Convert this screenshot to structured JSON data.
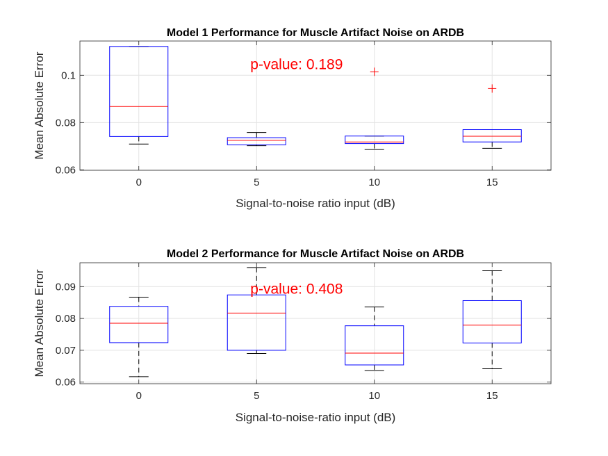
{
  "chart_data": [
    {
      "type": "box",
      "title": "Model 1 Performance for Muscle Artifact Noise on ARDB",
      "xlabel": "Signal-to-noise ratio input (dB)",
      "ylabel": "Mean Absolute Error",
      "categories": [
        "0",
        "5",
        "10",
        "15"
      ],
      "ylim": [
        0.0598,
        0.1145
      ],
      "yticks": [
        0.06,
        0.08,
        0.1
      ],
      "ytick_labels": [
        "0.06",
        "0.08",
        "0.1"
      ],
      "grid": true,
      "annotation": "p-value: 0.189",
      "annotation_position": {
        "category": 1.4,
        "value": 0.1047
      },
      "box_color": "#0000ff",
      "median_color": "#ff0000",
      "outlier_color": "#ff0000",
      "whisker_color": "#000000",
      "boxes": [
        {
          "category": "0",
          "whisker_low": 0.0709,
          "q1": 0.0741,
          "median": 0.0868,
          "q3": 0.1122,
          "whisker_high": 0.1122,
          "outliers": []
        },
        {
          "category": "5",
          "whisker_low": 0.0702,
          "q1": 0.0706,
          "median": 0.0725,
          "q3": 0.0736,
          "whisker_high": 0.0758,
          "outliers": []
        },
        {
          "category": "10",
          "whisker_low": 0.0686,
          "q1": 0.0711,
          "median": 0.0718,
          "q3": 0.0743,
          "whisker_high": 0.0743,
          "outliers": [
            0.1015
          ]
        },
        {
          "category": "15",
          "whisker_low": 0.0691,
          "q1": 0.0718,
          "median": 0.0742,
          "q3": 0.077,
          "whisker_high": 0.077,
          "outliers": [
            0.0944
          ]
        }
      ]
    },
    {
      "type": "box",
      "title": "Model 2 Performance for Muscle Artifact Noise on ARDB",
      "xlabel": "Signal-to-noise-ratio input (dB)",
      "ylabel": "Mean Absolute Error",
      "categories": [
        "0",
        "5",
        "10",
        "15"
      ],
      "ylim": [
        0.0595,
        0.0975
      ],
      "yticks": [
        0.06,
        0.07,
        0.08,
        0.09
      ],
      "ytick_labels": [
        "0.06",
        "0.07",
        "0.08",
        "0.09"
      ],
      "grid": true,
      "annotation": "p-value: 0.408",
      "annotation_position": {
        "category": 1.4,
        "value": 0.0893
      },
      "box_color": "#0000ff",
      "median_color": "#ff0000",
      "outlier_color": "#ff0000",
      "whisker_color": "#000000",
      "boxes": [
        {
          "category": "0",
          "whisker_low": 0.0617,
          "q1": 0.0724,
          "median": 0.0785,
          "q3": 0.0838,
          "whisker_high": 0.0867,
          "outliers": []
        },
        {
          "category": "5",
          "whisker_low": 0.069,
          "q1": 0.07,
          "median": 0.0817,
          "q3": 0.0874,
          "whisker_high": 0.096,
          "outliers": []
        },
        {
          "category": "10",
          "whisker_low": 0.0636,
          "q1": 0.0654,
          "median": 0.0691,
          "q3": 0.0777,
          "whisker_high": 0.0836,
          "outliers": []
        },
        {
          "category": "15",
          "whisker_low": 0.0642,
          "q1": 0.0723,
          "median": 0.0779,
          "q3": 0.0856,
          "whisker_high": 0.095,
          "outliers": []
        }
      ]
    }
  ]
}
